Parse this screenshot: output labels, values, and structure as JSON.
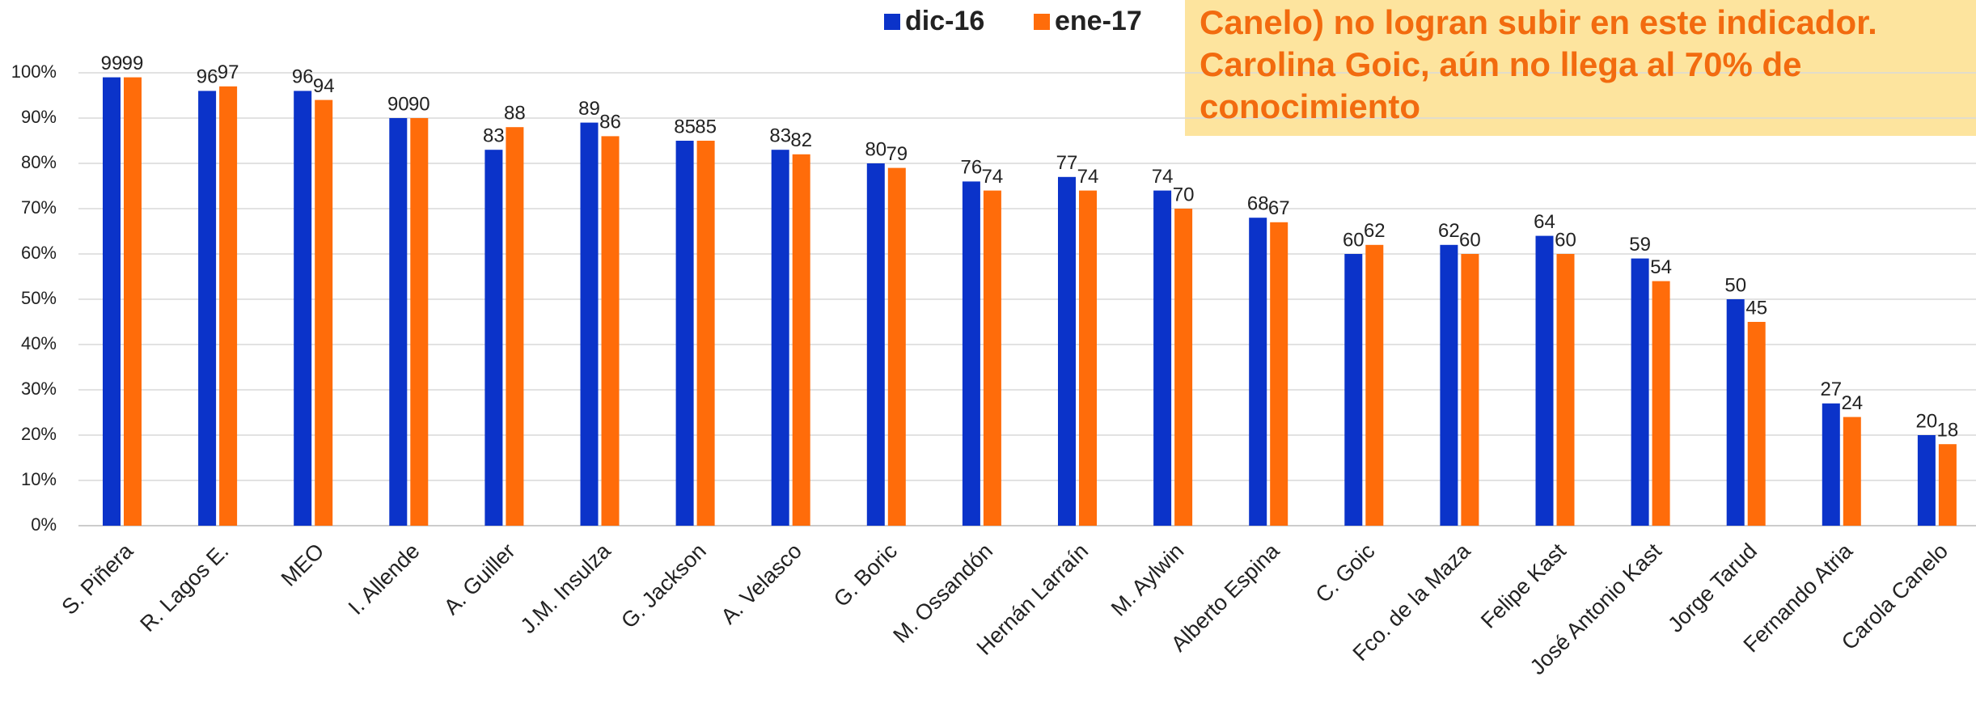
{
  "chart_data": {
    "type": "bar",
    "categories": [
      "S. Piñera",
      "R. Lagos E.",
      "MEO",
      "I. Allende",
      "A. Guiller",
      "J.M. Insulza",
      "G. Jackson",
      "A. Velasco",
      "G. Boric",
      "M. Ossandón",
      "Hernán Larraín",
      "M. Aylwin",
      "Alberto Espina",
      "C. Goic",
      "Fco. de la Maza",
      "Felipe Kast",
      "José Antonio Kast",
      "Jorge Tarud",
      "Fernando Atria",
      "Carola Canelo"
    ],
    "series": [
      {
        "name": "dic-16",
        "color": "#0b33c9",
        "values": [
          99,
          96,
          96,
          90,
          83,
          89,
          85,
          83,
          80,
          76,
          77,
          74,
          68,
          60,
          62,
          64,
          59,
          50,
          27,
          20
        ]
      },
      {
        "name": "ene-17",
        "color": "#ff6c0a",
        "values": [
          99,
          97,
          94,
          90,
          88,
          86,
          85,
          82,
          79,
          74,
          74,
          70,
          67,
          62,
          60,
          60,
          54,
          45,
          24,
          18
        ]
      }
    ],
    "ylim": [
      0,
      100
    ],
    "yticks": [
      {
        "value": 0,
        "label": "0%"
      },
      {
        "value": 10,
        "label": "10%"
      },
      {
        "value": 20,
        "label": "20%"
      },
      {
        "value": 30,
        "label": "30%"
      },
      {
        "value": 40,
        "label": "40%"
      },
      {
        "value": 50,
        "label": "50%"
      },
      {
        "value": 60,
        "label": "60%"
      },
      {
        "value": 70,
        "label": "70%"
      },
      {
        "value": 80,
        "label": "80%"
      },
      {
        "value": 90,
        "label": "90%"
      },
      {
        "value": 100,
        "label": "100%"
      }
    ],
    "grid": true,
    "legend": "top",
    "annotation": [
      "Canelo) no logran subir en este indicador.",
      "Carolina Goic, aún no llega al 70% de",
      "conocimiento"
    ]
  }
}
